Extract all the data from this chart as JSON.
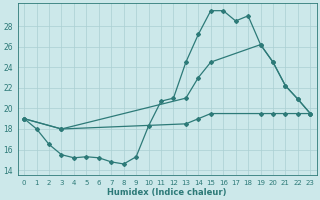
{
  "xlabel": "Humidex (Indice chaleur)",
  "bg_color": "#cce8ea",
  "grid_color": "#aacfd2",
  "line_color": "#2d7a78",
  "xlim": [
    -0.5,
    23.5
  ],
  "ylim": [
    13.5,
    30.2
  ],
  "xticks": [
    0,
    1,
    2,
    3,
    4,
    5,
    6,
    7,
    8,
    9,
    10,
    11,
    12,
    13,
    14,
    15,
    16,
    17,
    18,
    19,
    20,
    21,
    22,
    23
  ],
  "yticks": [
    14,
    16,
    18,
    20,
    22,
    24,
    26,
    28
  ],
  "line1_x": [
    0,
    1,
    2,
    3,
    4,
    5,
    6,
    7,
    8,
    9,
    10,
    11,
    12,
    13,
    14,
    15,
    16,
    17,
    18,
    19,
    20,
    21,
    22,
    23
  ],
  "line1_y": [
    19.0,
    18.0,
    16.5,
    15.5,
    15.2,
    15.3,
    15.2,
    14.8,
    14.6,
    15.3,
    18.3,
    20.7,
    21.0,
    24.5,
    27.2,
    29.5,
    29.5,
    28.5,
    29.0,
    26.2,
    24.5,
    22.2,
    20.9,
    19.5
  ],
  "line2_x": [
    0,
    3,
    13,
    14,
    15,
    19,
    20,
    21,
    22,
    23
  ],
  "line2_y": [
    19.0,
    18.0,
    21.0,
    23.0,
    24.5,
    26.2,
    24.5,
    22.2,
    20.9,
    19.5
  ],
  "line3_x": [
    0,
    3,
    13,
    14,
    15,
    19,
    20,
    21,
    22,
    23
  ],
  "line3_y": [
    19.0,
    18.0,
    18.5,
    19.0,
    19.5,
    19.5,
    19.5,
    19.5,
    19.5,
    19.5
  ],
  "figsize": [
    3.2,
    2.0
  ],
  "dpi": 100
}
